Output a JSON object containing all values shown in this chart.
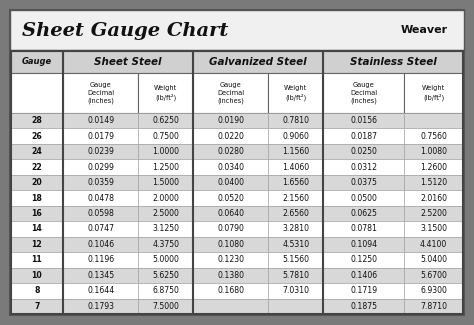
{
  "title": "Sheet Gauge Chart",
  "background_outer": "#7a7a7a",
  "background_inner": "#ffffff",
  "title_bg": "#ffffff",
  "header_bg": "#d0d0d0",
  "row_bg_even": "#d8d8d8",
  "row_bg_odd": "#ffffff",
  "col_headers": [
    "Sheet Steel",
    "Galvanized Steel",
    "Stainless Steel"
  ],
  "gauges": [
    28,
    26,
    24,
    22,
    20,
    18,
    16,
    14,
    12,
    11,
    10,
    8,
    7
  ],
  "sheet_steel": [
    [
      "0.0149",
      "0.6250"
    ],
    [
      "0.0179",
      "0.7500"
    ],
    [
      "0.0239",
      "1.0000"
    ],
    [
      "0.0299",
      "1.2500"
    ],
    [
      "0.0359",
      "1.5000"
    ],
    [
      "0.0478",
      "2.0000"
    ],
    [
      "0.0598",
      "2.5000"
    ],
    [
      "0.0747",
      "3.1250"
    ],
    [
      "0.1046",
      "4.3750"
    ],
    [
      "0.1196",
      "5.0000"
    ],
    [
      "0.1345",
      "5.6250"
    ],
    [
      "0.1644",
      "6.8750"
    ],
    [
      "0.1793",
      "7.5000"
    ]
  ],
  "galvanized_steel": [
    [
      "0.0190",
      "0.7810"
    ],
    [
      "0.0220",
      "0.9060"
    ],
    [
      "0.0280",
      "1.1560"
    ],
    [
      "0.0340",
      "1.4060"
    ],
    [
      "0.0400",
      "1.6560"
    ],
    [
      "0.0520",
      "2.1560"
    ],
    [
      "0.0640",
      "2.6560"
    ],
    [
      "0.0790",
      "3.2810"
    ],
    [
      "0.1080",
      "4.5310"
    ],
    [
      "0.1230",
      "5.1560"
    ],
    [
      "0.1380",
      "5.7810"
    ],
    [
      "0.1680",
      "7.0310"
    ],
    [
      "",
      ""
    ]
  ],
  "stainless_steel": [
    [
      "0.0156",
      ""
    ],
    [
      "0.0187",
      "0.7560"
    ],
    [
      "0.0250",
      "1.0080"
    ],
    [
      "0.0312",
      "1.2600"
    ],
    [
      "0.0375",
      "1.5120"
    ],
    [
      "0.0500",
      "2.0160"
    ],
    [
      "0.0625",
      "2.5200"
    ],
    [
      "0.0781",
      "3.1500"
    ],
    [
      "0.1094",
      "4.4100"
    ],
    [
      "0.1250",
      "5.0400"
    ],
    [
      "0.1406",
      "5.6700"
    ],
    [
      "0.1719",
      "6.9300"
    ],
    [
      "0.1875",
      "7.8710"
    ]
  ],
  "fig_width": 4.74,
  "fig_height": 3.25,
  "dpi": 100
}
